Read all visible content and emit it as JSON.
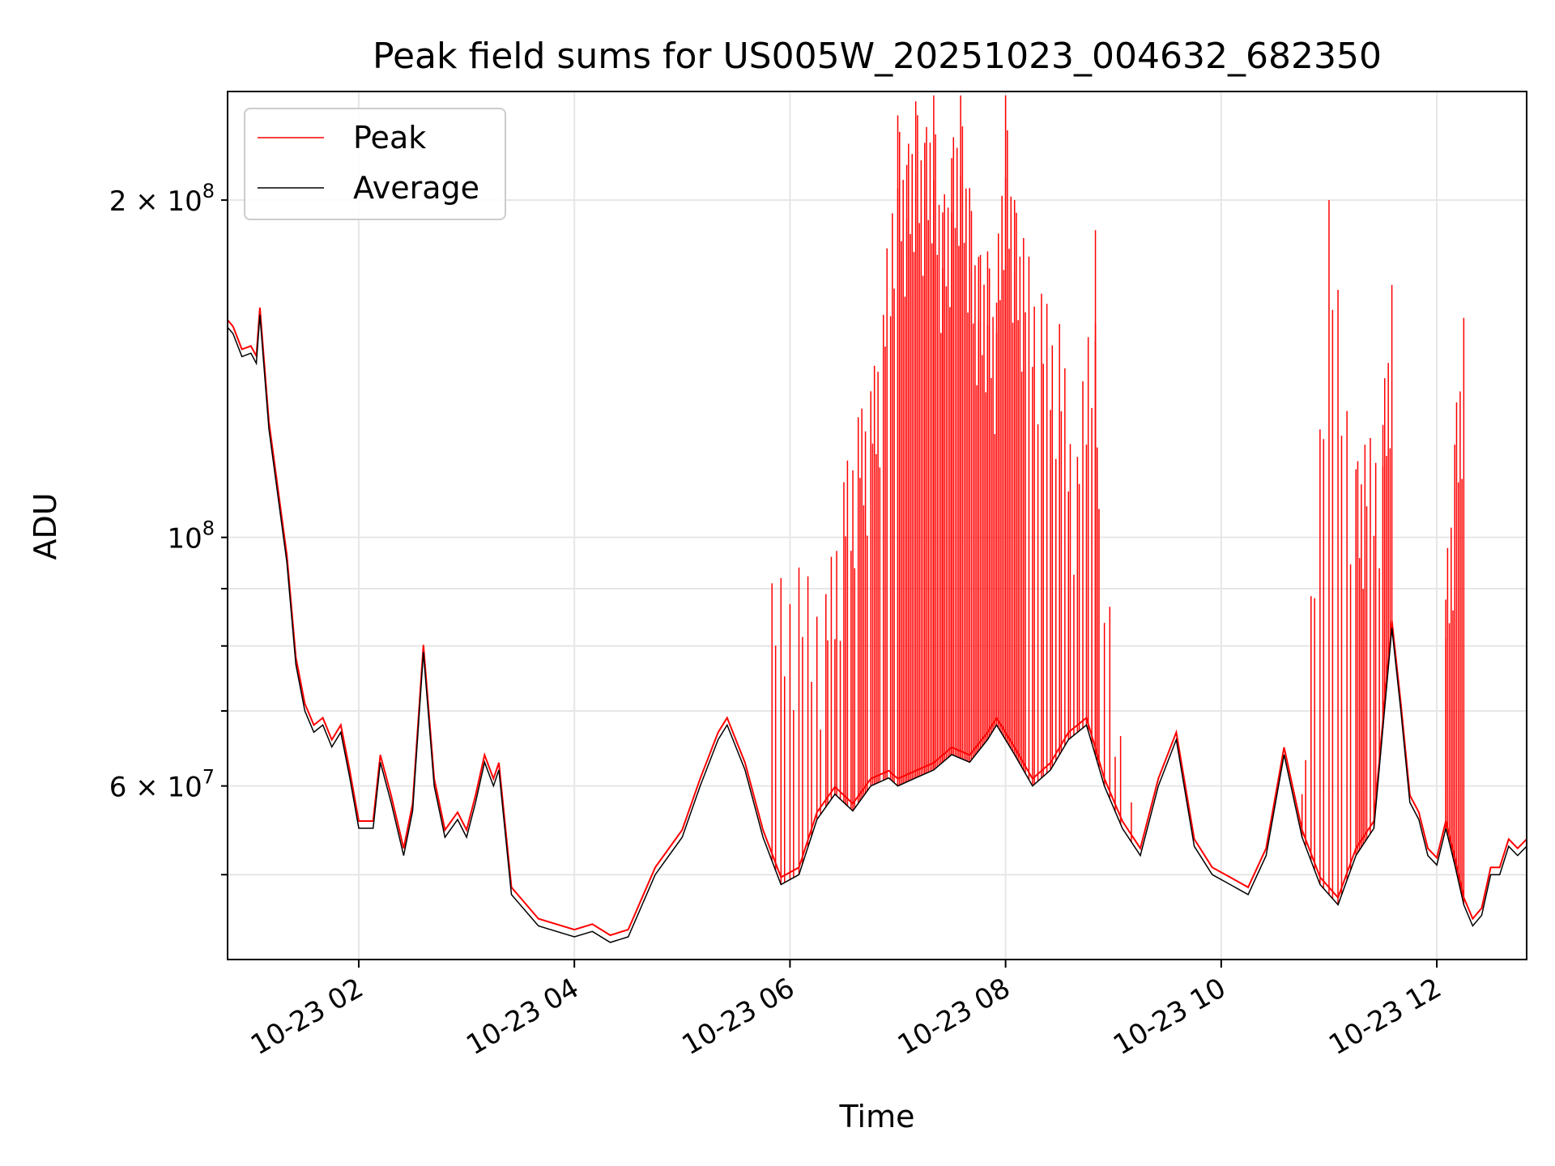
{
  "chart_data": {
    "type": "line",
    "title": "Peak field sums for US005W_20251023_004632_682350",
    "xlabel": "Time",
    "ylabel": "ADU",
    "yscale": "log",
    "ylim": [
      42000000,
      250000000
    ],
    "xlim": [
      "2025-10-23 00:47",
      "2025-10-23 12:50"
    ],
    "grid": true,
    "legend": {
      "placement": "upper-left"
    },
    "xtick_labels": [
      "10-23 02",
      "10-23 04",
      "10-23 06",
      "10-23 08",
      "10-23 10",
      "10-23 12"
    ],
    "xtick_values": [
      "2025-10-23 02:00",
      "2025-10-23 04:00",
      "2025-10-23 06:00",
      "2025-10-23 08:00",
      "2025-10-23 10:00",
      "2025-10-23 12:00"
    ],
    "ytick_labels": [
      {
        "value": 60000000,
        "mantissa": "6",
        "exponent": "7"
      },
      {
        "value": 100000000,
        "mantissa": "",
        "exponent": "8"
      },
      {
        "value": 200000000,
        "mantissa": "2",
        "exponent": "8"
      }
    ],
    "series": [
      {
        "name": "Peak",
        "color": "#ff0000",
        "values": [
          [
            "2025-10-23 05:50",
            91000000
          ],
          [
            "2025-10-23 06:05",
            94000000
          ],
          [
            "2025-10-23 06:20",
            89000000
          ],
          [
            "2025-10-23 06:30",
            112000000
          ],
          [
            "2025-10-23 06:38",
            128000000
          ],
          [
            "2025-10-23 06:45",
            135000000
          ],
          [
            "2025-10-23 06:52",
            158000000
          ],
          [
            "2025-10-23 07:00",
            238000000
          ],
          [
            "2025-10-23 07:05",
            215000000
          ],
          [
            "2025-10-23 07:10",
            245000000
          ],
          [
            "2025-10-23 07:15",
            225000000
          ],
          [
            "2025-10-23 07:20",
            248000000
          ],
          [
            "2025-10-23 07:25",
            195000000
          ],
          [
            "2025-10-23 07:30",
            218000000
          ],
          [
            "2025-10-23 07:35",
            248000000
          ],
          [
            "2025-10-23 07:40",
            205000000
          ],
          [
            "2025-10-23 07:45",
            178000000
          ],
          [
            "2025-10-23 07:50",
            180000000
          ],
          [
            "2025-10-23 07:55",
            162000000
          ],
          [
            "2025-10-23 08:00",
            248000000
          ],
          [
            "2025-10-23 08:05",
            200000000
          ],
          [
            "2025-10-23 08:10",
            185000000
          ],
          [
            "2025-10-23 08:20",
            165000000
          ],
          [
            "2025-10-23 08:30",
            155000000
          ],
          [
            "2025-10-23 08:40",
            118000000
          ],
          [
            "2025-10-23 08:50",
            188000000
          ],
          [
            "2025-10-23 08:52",
            106000000
          ],
          [
            "2025-10-23 09:10",
            58000000
          ],
          [
            "2025-10-23 10:45",
            59000000
          ],
          [
            "2025-10-23 11:00",
            200000000
          ],
          [
            "2025-10-23 11:15",
            115000000
          ],
          [
            "2025-10-23 11:20",
            121000000
          ],
          [
            "2025-10-23 11:30",
            126000000
          ],
          [
            "2025-10-23 11:35",
            168000000
          ],
          [
            "2025-10-23 12:05",
            88000000
          ],
          [
            "2025-10-23 12:10",
            121000000
          ],
          [
            "2025-10-23 12:15",
            157000000
          ]
        ]
      },
      {
        "name": "Average",
        "color": "#000000",
        "values": [
          [
            "2025-10-23 00:47",
            154000000
          ],
          [
            "2025-10-23 00:50",
            152000000
          ],
          [
            "2025-10-23 00:55",
            145000000
          ],
          [
            "2025-10-23 01:00",
            146000000
          ],
          [
            "2025-10-23 01:03",
            143000000
          ],
          [
            "2025-10-23 01:05",
            158000000
          ],
          [
            "2025-10-23 01:10",
            125000000
          ],
          [
            "2025-10-23 01:20",
            95000000
          ],
          [
            "2025-10-23 01:25",
            77000000
          ],
          [
            "2025-10-23 01:30",
            70000000
          ],
          [
            "2025-10-23 01:35",
            67000000
          ],
          [
            "2025-10-23 01:40",
            68000000
          ],
          [
            "2025-10-23 01:45",
            65000000
          ],
          [
            "2025-10-23 01:50",
            67000000
          ],
          [
            "2025-10-23 01:55",
            61000000
          ],
          [
            "2025-10-23 02:00",
            55000000
          ],
          [
            "2025-10-23 02:08",
            55000000
          ],
          [
            "2025-10-23 02:12",
            63000000
          ],
          [
            "2025-10-23 02:18",
            58000000
          ],
          [
            "2025-10-23 02:25",
            52000000
          ],
          [
            "2025-10-23 02:30",
            57000000
          ],
          [
            "2025-10-23 02:36",
            79000000
          ],
          [
            "2025-10-23 02:42",
            60000000
          ],
          [
            "2025-10-23 02:48",
            54000000
          ],
          [
            "2025-10-23 02:55",
            56000000
          ],
          [
            "2025-10-23 03:00",
            54000000
          ],
          [
            "2025-10-23 03:05",
            58000000
          ],
          [
            "2025-10-23 03:10",
            63000000
          ],
          [
            "2025-10-23 03:15",
            60000000
          ],
          [
            "2025-10-23 03:18",
            62000000
          ],
          [
            "2025-10-23 03:25",
            48000000
          ],
          [
            "2025-10-23 03:40",
            45000000
          ],
          [
            "2025-10-23 04:00",
            44000000
          ],
          [
            "2025-10-23 04:10",
            44500000
          ],
          [
            "2025-10-23 04:20",
            43500000
          ],
          [
            "2025-10-23 04:30",
            44000000
          ],
          [
            "2025-10-23 04:45",
            50000000
          ],
          [
            "2025-10-23 05:00",
            54000000
          ],
          [
            "2025-10-23 05:10",
            60000000
          ],
          [
            "2025-10-23 05:20",
            66000000
          ],
          [
            "2025-10-23 05:25",
            68000000
          ],
          [
            "2025-10-23 05:35",
            62000000
          ],
          [
            "2025-10-23 05:45",
            54000000
          ],
          [
            "2025-10-23 05:55",
            49000000
          ],
          [
            "2025-10-23 06:05",
            50000000
          ],
          [
            "2025-10-23 06:15",
            56000000
          ],
          [
            "2025-10-23 06:25",
            59000000
          ],
          [
            "2025-10-23 06:35",
            57000000
          ],
          [
            "2025-10-23 06:45",
            60000000
          ],
          [
            "2025-10-23 06:55",
            61000000
          ],
          [
            "2025-10-23 07:00",
            60000000
          ],
          [
            "2025-10-23 07:10",
            61000000
          ],
          [
            "2025-10-23 07:20",
            62000000
          ],
          [
            "2025-10-23 07:30",
            64000000
          ],
          [
            "2025-10-23 07:40",
            63000000
          ],
          [
            "2025-10-23 07:50",
            66000000
          ],
          [
            "2025-10-23 07:55",
            68000000
          ],
          [
            "2025-10-23 08:05",
            64000000
          ],
          [
            "2025-10-23 08:15",
            60000000
          ],
          [
            "2025-10-23 08:25",
            62000000
          ],
          [
            "2025-10-23 08:35",
            66000000
          ],
          [
            "2025-10-23 08:45",
            68000000
          ],
          [
            "2025-10-23 08:55",
            60000000
          ],
          [
            "2025-10-23 09:05",
            55000000
          ],
          [
            "2025-10-23 09:15",
            52000000
          ],
          [
            "2025-10-23 09:25",
            60000000
          ],
          [
            "2025-10-23 09:35",
            66000000
          ],
          [
            "2025-10-23 09:45",
            53000000
          ],
          [
            "2025-10-23 09:55",
            50000000
          ],
          [
            "2025-10-23 10:05",
            49000000
          ],
          [
            "2025-10-23 10:15",
            48000000
          ],
          [
            "2025-10-23 10:25",
            52000000
          ],
          [
            "2025-10-23 10:35",
            64000000
          ],
          [
            "2025-10-23 10:45",
            54000000
          ],
          [
            "2025-10-23 10:55",
            49000000
          ],
          [
            "2025-10-23 11:05",
            47000000
          ],
          [
            "2025-10-23 11:15",
            52000000
          ],
          [
            "2025-10-23 11:25",
            55000000
          ],
          [
            "2025-10-23 11:35",
            83000000
          ],
          [
            "2025-10-23 11:40",
            70000000
          ],
          [
            "2025-10-23 11:45",
            58000000
          ],
          [
            "2025-10-23 11:50",
            56000000
          ],
          [
            "2025-10-23 11:55",
            52000000
          ],
          [
            "2025-10-23 12:00",
            51000000
          ],
          [
            "2025-10-23 12:05",
            55000000
          ],
          [
            "2025-10-23 12:10",
            51000000
          ],
          [
            "2025-10-23 12:15",
            47000000
          ],
          [
            "2025-10-23 12:20",
            45000000
          ],
          [
            "2025-10-23 12:25",
            46000000
          ],
          [
            "2025-10-23 12:30",
            50000000
          ],
          [
            "2025-10-23 12:35",
            50000000
          ],
          [
            "2025-10-23 12:40",
            53000000
          ],
          [
            "2025-10-23 12:45",
            52000000
          ],
          [
            "2025-10-23 12:50",
            53000000
          ]
        ]
      }
    ]
  }
}
